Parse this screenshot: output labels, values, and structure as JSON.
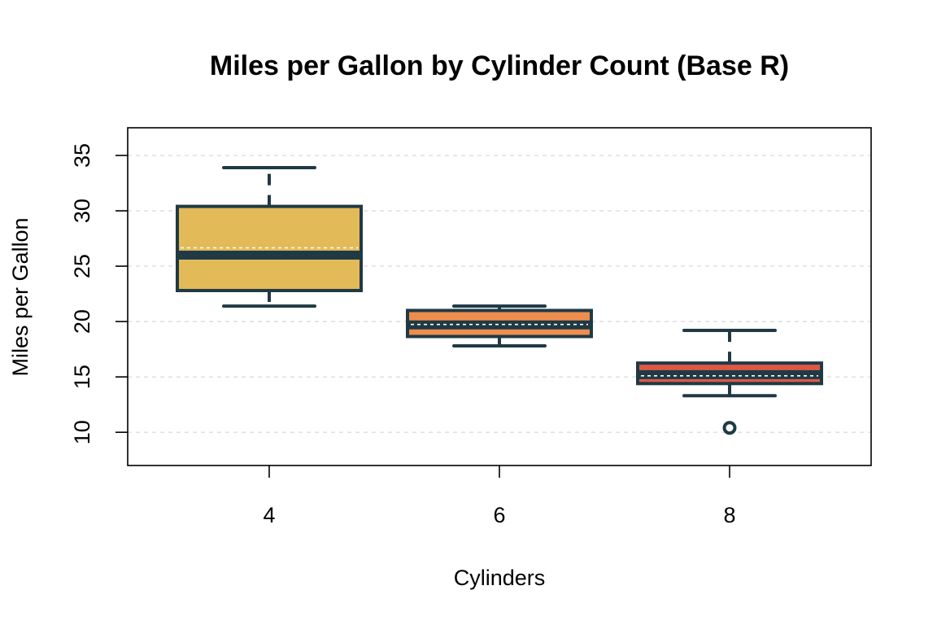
{
  "chart_data": {
    "type": "box",
    "title": "Miles per Gallon by Cylinder Count (Base R)",
    "xlabel": "Cylinders",
    "ylabel": "Miles per Gallon",
    "ylim": [
      7,
      37.5
    ],
    "yticks": [
      10,
      15,
      20,
      25,
      30,
      35
    ],
    "grid": true,
    "grid_style": "dashed horizontal",
    "categories": [
      "4",
      "6",
      "8"
    ],
    "boxes": [
      {
        "category": "4",
        "whisker_low": 21.4,
        "q1": 22.8,
        "median": 26.0,
        "q3": 30.4,
        "whisker_high": 33.9,
        "outliers": [],
        "fill": "#E3BA58"
      },
      {
        "category": "6",
        "whisker_low": 17.8,
        "q1": 18.65,
        "median": 19.7,
        "q3": 21.0,
        "whisker_high": 21.4,
        "outliers": [],
        "fill": "#EE8D4E"
      },
      {
        "category": "8",
        "whisker_low": 13.3,
        "q1": 14.4,
        "median": 15.2,
        "q3": 16.25,
        "whisker_high": 19.2,
        "outliers": [
          10.4
        ],
        "fill": "#DF5844"
      }
    ],
    "means": [
      26.66,
      19.74,
      15.1
    ],
    "colors": {
      "outline": "#1F3A45",
      "grid": "#DCDCDC",
      "mean_line": "#FFFFFF"
    }
  }
}
